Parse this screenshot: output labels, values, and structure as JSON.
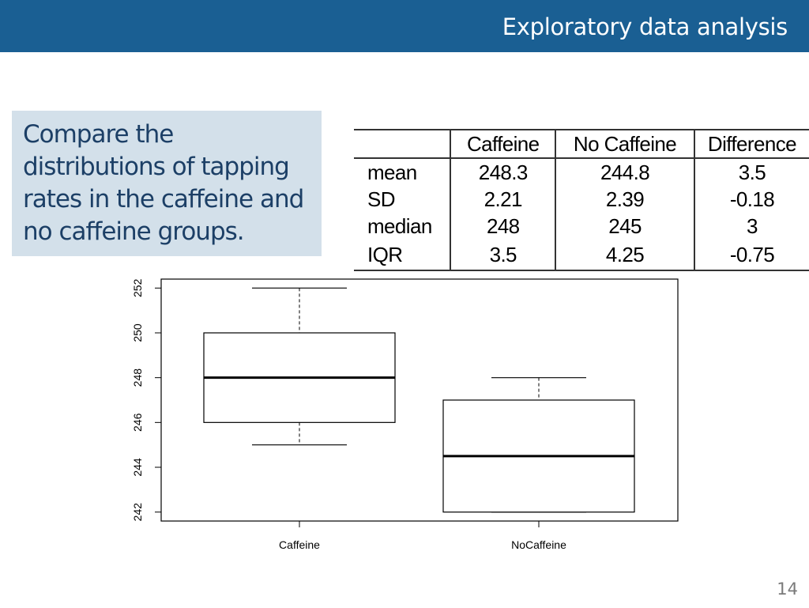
{
  "header": {
    "title": "Exploratory data analysis"
  },
  "prompt": {
    "text": "Compare the distributions of tapping rates in the caffeine and no caffeine groups."
  },
  "stats_table": {
    "headers": [
      "",
      "Caffeine",
      "No Caffeine",
      "Difference"
    ],
    "rows": [
      [
        "mean",
        "248.3",
        "244.8",
        "3.5"
      ],
      [
        "SD",
        "2.21",
        "2.39",
        "-0.18"
      ],
      [
        "median",
        "248",
        "245",
        "3"
      ],
      [
        "IQR",
        "3.5",
        "4.25",
        "-0.75"
      ]
    ]
  },
  "chart_data": {
    "type": "boxplot",
    "categories": [
      "Caffeine",
      "NoCaffeine"
    ],
    "boxes": [
      {
        "category": "Caffeine",
        "min": 245,
        "q1": 246,
        "median": 248,
        "q3": 250,
        "max": 252
      },
      {
        "category": "NoCaffeine",
        "min": 242,
        "q1": 242,
        "median": 244.5,
        "q3": 247,
        "max": 248
      }
    ],
    "yticks": [
      "242",
      "244",
      "246",
      "248",
      "250",
      "252"
    ],
    "ylim": [
      241.6,
      252.4
    ],
    "xlabel": "",
    "ylabel": "",
    "grid": false
  },
  "page": {
    "number": "14"
  }
}
